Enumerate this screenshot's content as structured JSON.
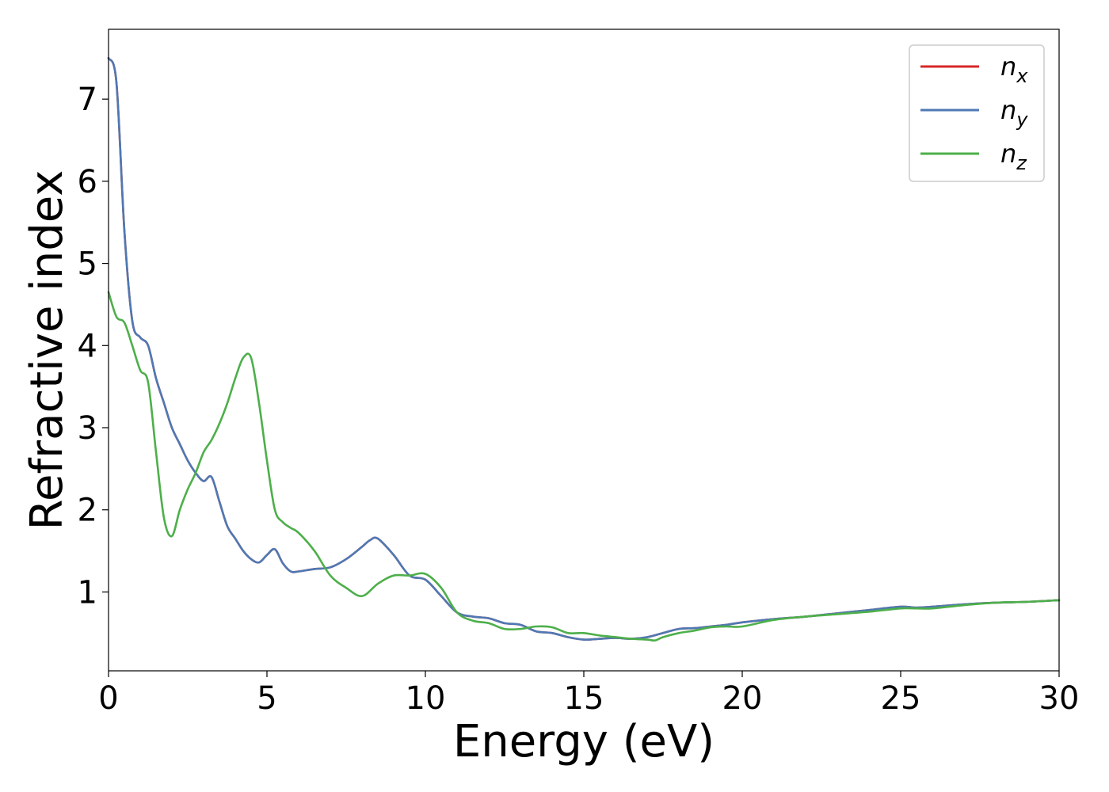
{
  "chart_data": {
    "type": "line",
    "title": "",
    "xlabel": "Energy (eV)",
    "ylabel": "Refractive index",
    "xlim": [
      0,
      30
    ],
    "ylim": [
      0.04,
      7.85
    ],
    "xticks": [
      0,
      5,
      10,
      15,
      20,
      25,
      30
    ],
    "yticks": [
      1,
      2,
      3,
      4,
      5,
      6,
      7
    ],
    "grid": false,
    "legend_position": "top-right",
    "series": [
      {
        "name": "n_x",
        "color": "#d62728",
        "x": [
          0,
          0.25,
          0.5,
          0.75,
          1.0,
          1.25,
          1.5,
          1.75,
          2.0,
          2.25,
          2.5,
          2.75,
          3.0,
          3.25,
          3.5,
          3.75,
          4.0,
          4.25,
          4.5,
          4.75,
          5.0,
          5.25,
          5.5,
          5.75,
          6.0,
          6.5,
          7.0,
          7.5,
          8.0,
          8.25,
          8.5,
          9.0,
          9.5,
          10.0,
          10.5,
          11.0,
          11.5,
          12.0,
          12.5,
          13.0,
          13.5,
          14.0,
          14.5,
          15.0,
          15.5,
          16.0,
          16.5,
          17.0,
          17.5,
          18.0,
          18.5,
          19.0,
          19.5,
          20.0,
          21.0,
          22.0,
          23.0,
          24.0,
          25.0,
          25.5,
          26.0,
          27.0,
          28.0,
          29.0,
          30.0
        ],
        "y": [
          7.5,
          7.2,
          5.4,
          4.3,
          4.1,
          4.0,
          3.6,
          3.3,
          3.0,
          2.8,
          2.6,
          2.45,
          2.35,
          2.4,
          2.1,
          1.8,
          1.65,
          1.5,
          1.4,
          1.36,
          1.45,
          1.52,
          1.35,
          1.25,
          1.25,
          1.28,
          1.3,
          1.4,
          1.55,
          1.63,
          1.65,
          1.45,
          1.2,
          1.15,
          0.95,
          0.75,
          0.7,
          0.68,
          0.62,
          0.6,
          0.52,
          0.5,
          0.45,
          0.42,
          0.43,
          0.44,
          0.43,
          0.45,
          0.5,
          0.55,
          0.56,
          0.58,
          0.6,
          0.63,
          0.67,
          0.7,
          0.74,
          0.78,
          0.82,
          0.81,
          0.82,
          0.85,
          0.87,
          0.88,
          0.9
        ]
      },
      {
        "name": "n_y",
        "color": "#4e79b4",
        "x": [
          0,
          0.25,
          0.5,
          0.75,
          1.0,
          1.25,
          1.5,
          1.75,
          2.0,
          2.25,
          2.5,
          2.75,
          3.0,
          3.25,
          3.5,
          3.75,
          4.0,
          4.25,
          4.5,
          4.75,
          5.0,
          5.25,
          5.5,
          5.75,
          6.0,
          6.5,
          7.0,
          7.5,
          8.0,
          8.25,
          8.5,
          9.0,
          9.5,
          10.0,
          10.5,
          11.0,
          11.5,
          12.0,
          12.5,
          13.0,
          13.5,
          14.0,
          14.5,
          15.0,
          15.5,
          16.0,
          16.5,
          17.0,
          17.5,
          18.0,
          18.5,
          19.0,
          19.5,
          20.0,
          21.0,
          22.0,
          23.0,
          24.0,
          25.0,
          25.5,
          26.0,
          27.0,
          28.0,
          29.0,
          30.0
        ],
        "y": [
          7.5,
          7.2,
          5.4,
          4.3,
          4.1,
          4.0,
          3.6,
          3.3,
          3.0,
          2.8,
          2.6,
          2.45,
          2.35,
          2.4,
          2.1,
          1.8,
          1.65,
          1.5,
          1.4,
          1.36,
          1.45,
          1.52,
          1.35,
          1.25,
          1.25,
          1.28,
          1.3,
          1.4,
          1.55,
          1.63,
          1.65,
          1.45,
          1.2,
          1.15,
          0.95,
          0.75,
          0.7,
          0.68,
          0.62,
          0.6,
          0.52,
          0.5,
          0.45,
          0.42,
          0.43,
          0.44,
          0.43,
          0.45,
          0.5,
          0.55,
          0.56,
          0.58,
          0.6,
          0.63,
          0.67,
          0.7,
          0.74,
          0.78,
          0.82,
          0.81,
          0.82,
          0.85,
          0.87,
          0.88,
          0.9
        ]
      },
      {
        "name": "n_z",
        "color": "#4daf4a",
        "x": [
          0,
          0.25,
          0.5,
          0.75,
          1.0,
          1.25,
          1.5,
          1.75,
          2.0,
          2.25,
          2.5,
          2.75,
          3.0,
          3.25,
          3.5,
          3.75,
          4.0,
          4.25,
          4.5,
          4.75,
          5.0,
          5.25,
          5.5,
          5.75,
          6.0,
          6.5,
          7.0,
          7.5,
          8.0,
          8.5,
          9.0,
          9.5,
          10.0,
          10.5,
          11.0,
          11.5,
          12.0,
          12.5,
          13.0,
          13.5,
          14.0,
          14.5,
          15.0,
          15.5,
          16.0,
          16.5,
          17.0,
          17.25,
          17.5,
          18.0,
          18.5,
          19.0,
          19.5,
          20.0,
          21.0,
          22.0,
          23.0,
          24.0,
          25.0,
          25.5,
          26.0,
          27.0,
          28.0,
          29.0,
          30.0
        ],
        "y": [
          4.65,
          4.35,
          4.28,
          4.0,
          3.7,
          3.55,
          2.7,
          1.9,
          1.68,
          2.0,
          2.25,
          2.45,
          2.7,
          2.85,
          3.05,
          3.3,
          3.6,
          3.85,
          3.85,
          3.3,
          2.6,
          2.0,
          1.85,
          1.78,
          1.72,
          1.5,
          1.2,
          1.05,
          0.95,
          1.1,
          1.2,
          1.2,
          1.22,
          1.05,
          0.75,
          0.65,
          0.62,
          0.55,
          0.55,
          0.58,
          0.57,
          0.5,
          0.5,
          0.47,
          0.45,
          0.43,
          0.42,
          0.41,
          0.45,
          0.5,
          0.53,
          0.57,
          0.58,
          0.58,
          0.66,
          0.7,
          0.73,
          0.76,
          0.8,
          0.8,
          0.8,
          0.84,
          0.87,
          0.88,
          0.9
        ]
      }
    ]
  }
}
